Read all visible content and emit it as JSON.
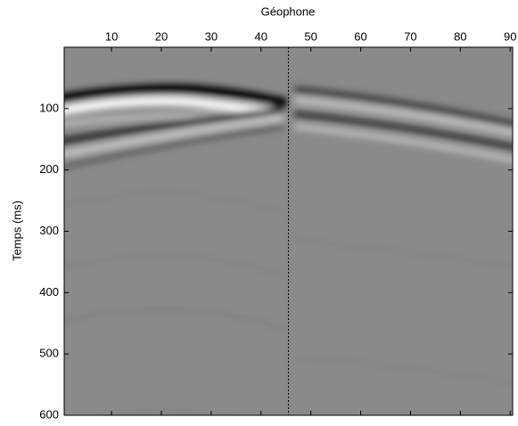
{
  "chart_data": {
    "type": "image",
    "xlabel": "Géophone",
    "ylabel": "Temps (ms)",
    "xlim": [
      0.5,
      90.5
    ],
    "xticks": [
      10,
      20,
      30,
      40,
      50,
      60,
      70,
      80,
      90
    ],
    "ylim": [
      0,
      600
    ],
    "yticks": [
      100,
      200,
      300,
      400,
      500,
      600
    ],
    "x_axis_position": "top",
    "y_reversed": true,
    "vline": 45.5
  }
}
